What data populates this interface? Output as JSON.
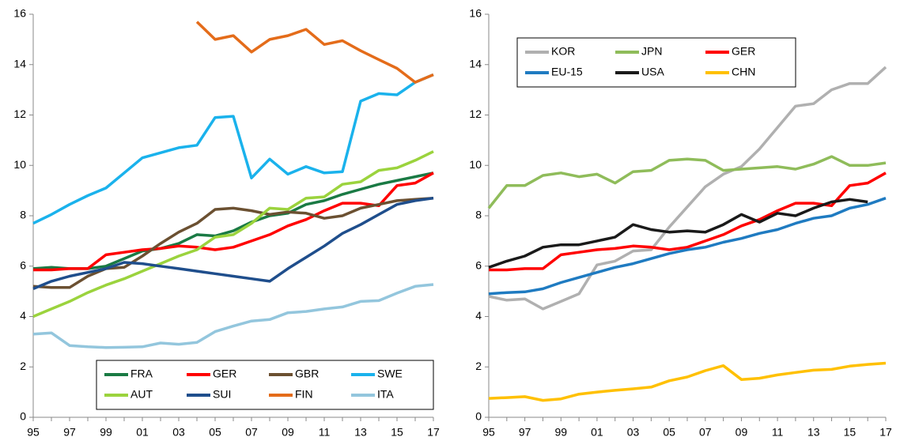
{
  "chart_data": [
    {
      "type": "line",
      "categories": [
        "95",
        null,
        "97",
        null,
        "99",
        null,
        "01",
        null,
        "03",
        null,
        "05",
        null,
        "07",
        null,
        "09",
        null,
        "11",
        null,
        "13",
        null,
        "15",
        null,
        "17"
      ],
      "ylim": [
        0,
        16
      ],
      "yticks": [
        0,
        2,
        4,
        6,
        8,
        10,
        12,
        14,
        16
      ],
      "grid": false,
      "legend": "lower right",
      "legend_columns": 4,
      "series": [
        {
          "name": "FRA",
          "color": "#1a7a44",
          "values": [
            5.9,
            5.95,
            5.9,
            5.9,
            6.0,
            6.3,
            6.6,
            6.7,
            6.9,
            7.25,
            7.2,
            7.4,
            7.75,
            8.0,
            8.1,
            8.45,
            8.6,
            8.85,
            9.05,
            9.25,
            9.4,
            9.55,
            9.7
          ]
        },
        {
          "name": "GER",
          "color": "#ff0000",
          "values": [
            5.85,
            5.85,
            5.9,
            5.9,
            6.45,
            6.55,
            6.65,
            6.7,
            6.8,
            6.75,
            6.65,
            6.75,
            7.0,
            7.25,
            7.6,
            7.85,
            8.2,
            8.5,
            8.5,
            8.4,
            9.2,
            9.3,
            9.7
          ]
        },
        {
          "name": "GBR",
          "color": "#6b5031",
          "values": [
            5.2,
            5.15,
            5.15,
            5.6,
            5.9,
            5.95,
            6.4,
            6.9,
            7.35,
            7.7,
            8.25,
            8.3,
            8.2,
            8.05,
            8.15,
            8.1,
            7.9,
            8.0,
            8.3,
            8.45,
            8.6,
            8.65,
            8.7
          ]
        },
        {
          "name": "SWE",
          "color": "#1ab2ec",
          "values": [
            7.7,
            8.05,
            8.45,
            8.8,
            9.1,
            9.7,
            10.3,
            10.5,
            10.7,
            10.8,
            11.9,
            11.95,
            9.5,
            10.25,
            9.65,
            9.95,
            9.7,
            9.75,
            12.55,
            12.85,
            12.8,
            13.3,
            13.6
          ]
        },
        {
          "name": "AUT",
          "color": "#9bd33d",
          "values": [
            4.0,
            4.3,
            4.6,
            4.95,
            5.25,
            5.5,
            5.8,
            6.1,
            6.4,
            6.65,
            7.15,
            7.25,
            7.7,
            8.3,
            8.25,
            8.7,
            8.75,
            9.25,
            9.35,
            9.8,
            9.9,
            10.2,
            10.55
          ]
        },
        {
          "name": "SUI",
          "color": "#1f4e8c",
          "values": [
            5.1,
            5.4,
            5.6,
            5.75,
            5.9,
            6.15,
            6.1,
            6.0,
            5.9,
            5.8,
            5.7,
            5.6,
            5.5,
            5.4,
            5.9,
            6.35,
            6.8,
            7.3,
            7.65,
            8.05,
            8.45,
            8.6,
            8.7
          ]
        },
        {
          "name": "FIN",
          "color": "#e46c1a",
          "values": [
            null,
            null,
            null,
            null,
            null,
            null,
            null,
            null,
            null,
            15.7,
            15.0,
            15.15,
            14.5,
            15.0,
            15.15,
            15.4,
            14.8,
            14.95,
            14.55,
            14.2,
            13.85,
            13.3,
            13.6
          ]
        },
        {
          "name": "ITA",
          "color": "#93c6dd",
          "values": [
            3.3,
            3.35,
            2.85,
            2.8,
            2.77,
            2.78,
            2.8,
            2.95,
            2.9,
            2.97,
            3.4,
            3.62,
            3.82,
            3.88,
            4.15,
            4.2,
            4.3,
            4.38,
            4.6,
            4.63,
            4.93,
            5.2,
            5.27
          ]
        }
      ]
    },
    {
      "type": "line",
      "categories": [
        "95",
        null,
        "97",
        null,
        "99",
        null,
        "01",
        null,
        "03",
        null,
        "05",
        null,
        "07",
        null,
        "09",
        null,
        "11",
        null,
        "13",
        null,
        "15",
        null,
        "17"
      ],
      "ylim": [
        0,
        16
      ],
      "yticks": [
        0,
        2,
        4,
        6,
        8,
        10,
        12,
        14,
        16
      ],
      "grid": false,
      "legend": "upper left",
      "legend_columns": 3,
      "series": [
        {
          "name": "KOR",
          "color": "#b0b0b0",
          "values": [
            4.8,
            4.65,
            4.7,
            4.3,
            4.6,
            4.9,
            6.05,
            6.2,
            6.6,
            6.65,
            7.55,
            8.35,
            9.15,
            9.65,
            9.95,
            10.65,
            11.5,
            12.35,
            12.45,
            13.0,
            13.25,
            13.25,
            13.9
          ]
        },
        {
          "name": "JPN",
          "color": "#8fbc5a",
          "values": [
            8.3,
            9.2,
            9.2,
            9.6,
            9.7,
            9.55,
            9.65,
            9.3,
            9.75,
            9.8,
            10.2,
            10.25,
            10.2,
            9.8,
            9.85,
            9.9,
            9.95,
            9.85,
            10.05,
            10.35,
            10.0,
            10.0,
            10.1
          ]
        },
        {
          "name": "GER",
          "color": "#ff0000",
          "values": [
            5.85,
            5.85,
            5.9,
            5.9,
            6.45,
            6.55,
            6.65,
            6.7,
            6.8,
            6.75,
            6.65,
            6.75,
            7.0,
            7.25,
            7.6,
            7.85,
            8.2,
            8.5,
            8.5,
            8.4,
            9.2,
            9.3,
            9.7
          ]
        },
        {
          "name": "EU-15",
          "color": "#1f7bc1",
          "values": [
            4.9,
            4.95,
            4.98,
            5.1,
            5.35,
            5.55,
            5.75,
            5.95,
            6.1,
            6.3,
            6.5,
            6.65,
            6.75,
            6.95,
            7.1,
            7.3,
            7.45,
            7.7,
            7.9,
            8.0,
            8.3,
            8.45,
            8.7
          ]
        },
        {
          "name": "USA",
          "color": "#1a1a1a",
          "values": [
            5.95,
            6.2,
            6.4,
            6.75,
            6.85,
            6.85,
            7.0,
            7.15,
            7.65,
            7.45,
            7.35,
            7.4,
            7.35,
            7.65,
            8.05,
            7.75,
            8.1,
            8.0,
            8.3,
            8.55,
            8.65,
            8.55,
            null
          ]
        },
        {
          "name": "CHN",
          "color": "#ffc000",
          "values": [
            0.75,
            0.78,
            0.82,
            0.67,
            0.73,
            0.92,
            1.0,
            1.07,
            1.13,
            1.2,
            1.45,
            1.6,
            1.85,
            2.05,
            1.5,
            1.55,
            1.68,
            1.78,
            1.87,
            1.9,
            2.03,
            2.1,
            2.15
          ]
        }
      ]
    }
  ]
}
